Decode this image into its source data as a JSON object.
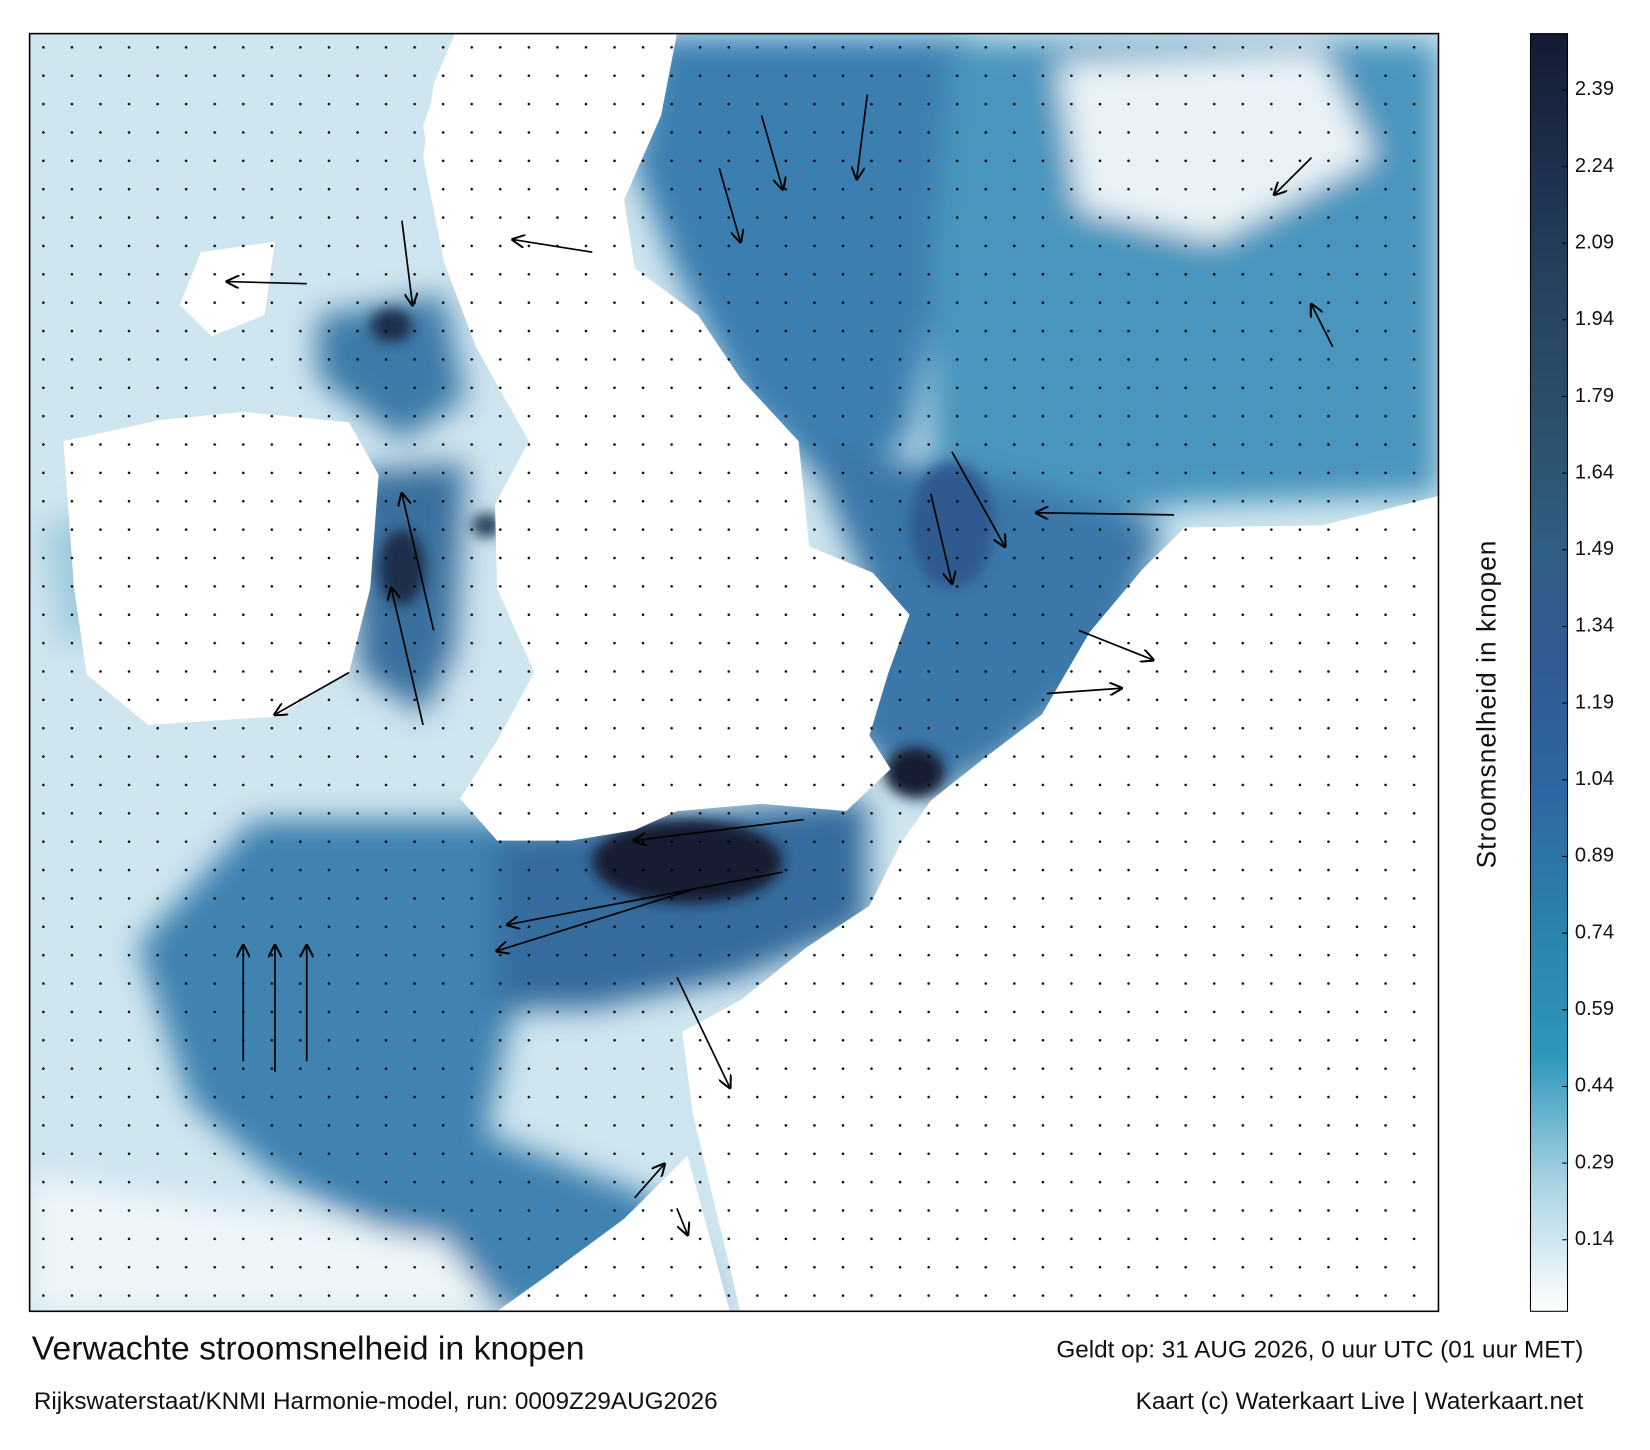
{
  "title": "Verwachte stroomsnelheid in knopen",
  "subtitle": "Rijkswaterstaat/KNMI Harmonie-model, run: 0009Z29AUG2026",
  "valid": "Geldt op: 31 AUG 2026, 0 uur UTC (01 uur MET)",
  "credit": "Kaart (c) Waterkaart Live | Waterkaart.net",
  "colorbar": {
    "label": "Stroomsnelheid in knopen",
    "lim": [
      0,
      2.5
    ],
    "ticks": [
      0.14,
      0.29,
      0.44,
      0.59,
      0.74,
      0.89,
      1.04,
      1.19,
      1.34,
      1.49,
      1.64,
      1.79,
      1.94,
      2.09,
      2.24,
      2.39
    ],
    "colors": [
      "#ffffff",
      "#a9d3e3",
      "#2e97bb",
      "#2b82ad",
      "#2e68a4",
      "#2f5a95",
      "#2f5e82",
      "#2b4f6a",
      "#26435e",
      "#1d2f4c",
      "#141a33"
    ]
  }
}
